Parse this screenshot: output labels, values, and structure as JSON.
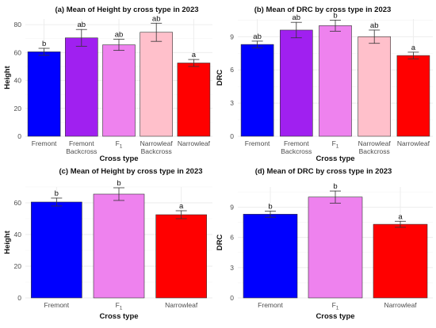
{
  "chart_data": [
    {
      "type": "bar",
      "title": "(a) Mean of Height by cross type in 2023",
      "xlabel": "Cross type",
      "ylabel": "Height",
      "ylim": [
        0,
        84
      ],
      "yticks": [
        0,
        20,
        40,
        60,
        80
      ],
      "categories": [
        [
          "Fremont"
        ],
        [
          "Fremont",
          "Backcross"
        ],
        [
          "F",
          "1"
        ],
        [
          "Narrowleaf",
          "Backcross"
        ],
        [
          "Narrowleaf"
        ]
      ],
      "values": [
        60.5,
        70.5,
        65.5,
        74.5,
        52.5
      ],
      "errors": [
        2.5,
        6,
        4,
        6.5,
        2.5
      ],
      "letters": [
        "b",
        "ab",
        "ab",
        "ab",
        "a"
      ],
      "colors": [
        "#0000ff",
        "#a020f0",
        "#ee82ee",
        "#ffc0cb",
        "#ff0000"
      ],
      "grid": true
    },
    {
      "type": "bar",
      "title": "(b) Mean of DRC by cross type in 2023",
      "xlabel": "Cross type",
      "ylabel": "DRC",
      "ylim": [
        0,
        10.6
      ],
      "yticks": [
        0,
        3,
        6,
        9
      ],
      "categories": [
        [
          "Fremont"
        ],
        [
          "Fremont",
          "Backcross"
        ],
        [
          "F",
          "1"
        ],
        [
          "Narrowleaf",
          "Backcross"
        ],
        [
          "Narrowleaf"
        ]
      ],
      "values": [
        8.3,
        9.6,
        10.0,
        9.0,
        7.3
      ],
      "errors": [
        0.3,
        0.7,
        0.5,
        0.6,
        0.3
      ],
      "letters": [
        "ab",
        "ab",
        "b",
        "ab",
        "a"
      ],
      "colors": [
        "#0000ff",
        "#a020f0",
        "#ee82ee",
        "#ffc0cb",
        "#ff0000"
      ],
      "grid": true
    },
    {
      "type": "bar",
      "title": "(c) Mean of Height by cross type in 2023",
      "xlabel": "Cross type",
      "ylabel": "Height",
      "ylim": [
        0,
        70
      ],
      "yticks": [
        0,
        20,
        40,
        60
      ],
      "categories": [
        [
          "Fremont"
        ],
        [
          "F",
          "1"
        ],
        [
          "Narrowleaf"
        ]
      ],
      "values": [
        60.5,
        65.5,
        52.5
      ],
      "errors": [
        2.5,
        4,
        2.5
      ],
      "letters": [
        "b",
        "b",
        "a"
      ],
      "colors": [
        "#0000ff",
        "#ee82ee",
        "#ff0000"
      ],
      "grid": true
    },
    {
      "type": "bar",
      "title": "(d) Mean of DRC by cross type in 2023",
      "xlabel": "Cross type",
      "ylabel": "DRC",
      "ylim": [
        0,
        11
      ],
      "yticks": [
        0,
        3,
        6,
        9
      ],
      "categories": [
        [
          "Fremont"
        ],
        [
          "F",
          "1"
        ],
        [
          "Narrowleaf"
        ]
      ],
      "values": [
        8.3,
        10.0,
        7.3
      ],
      "errors": [
        0.3,
        0.6,
        0.3
      ],
      "letters": [
        "b",
        "b",
        "a"
      ],
      "colors": [
        "#0000ff",
        "#ee82ee",
        "#ff0000"
      ],
      "grid": true
    }
  ]
}
